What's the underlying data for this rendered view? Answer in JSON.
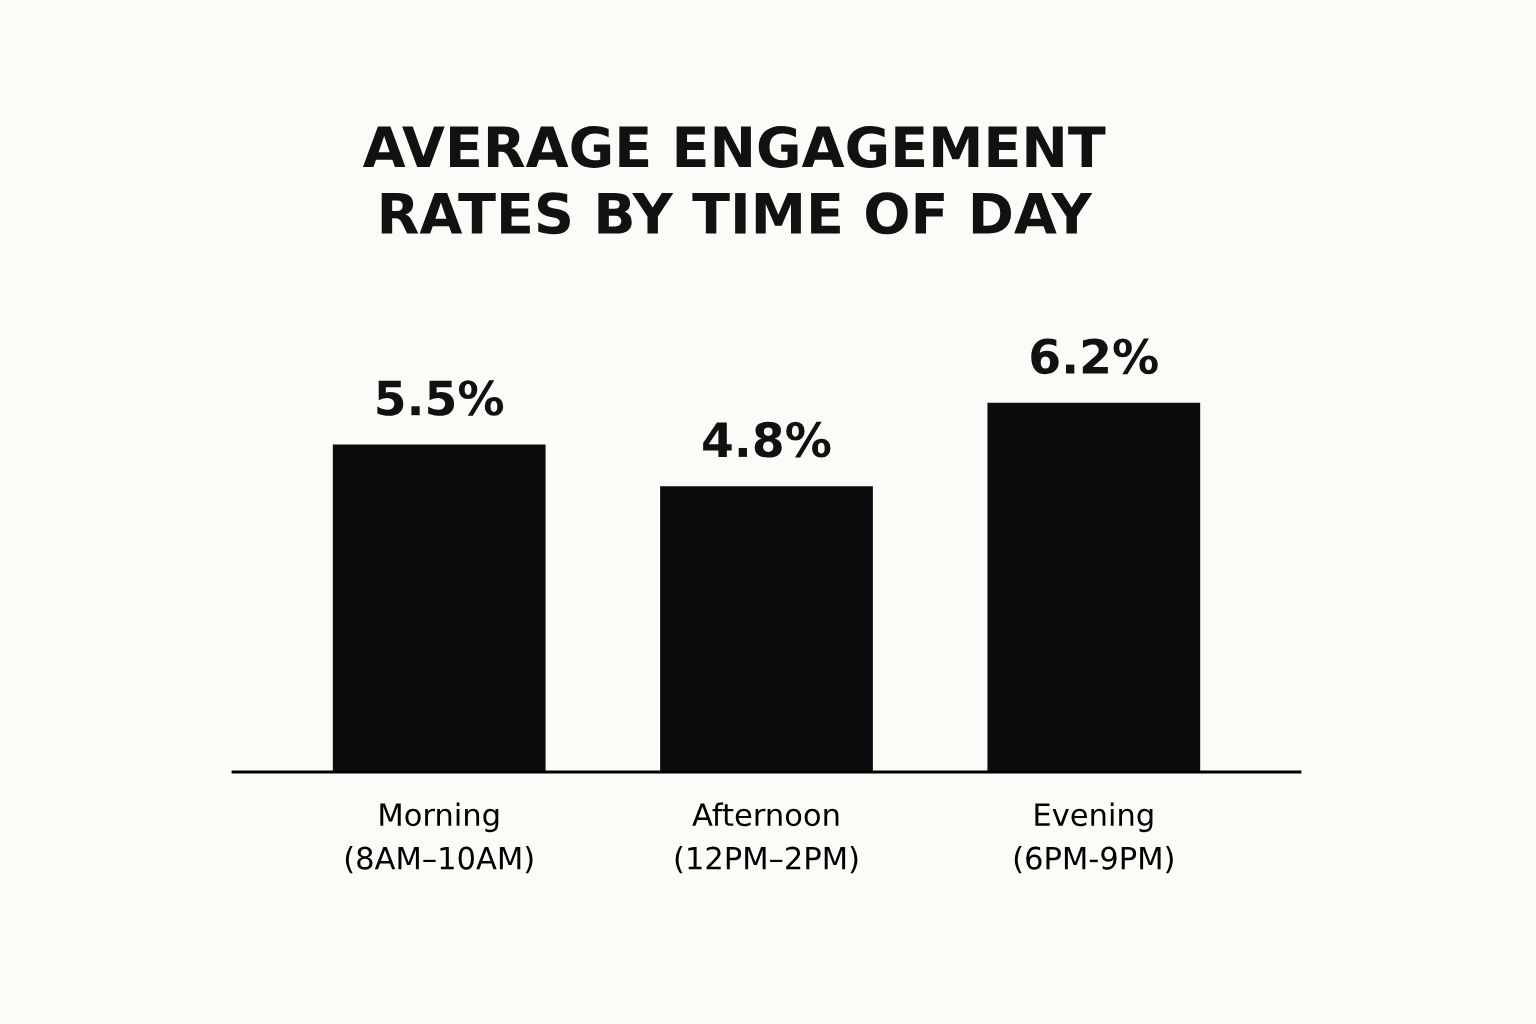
{
  "chart_data": {
    "type": "bar",
    "title": "AVERAGE ENGAGEMENT\nRATES BY TIME OF DAY",
    "categories": [
      "Morning\n(8AM–10AM)",
      "Afternoon\n(12PM–2PM)",
      "Evening\n(6PM-9PM)"
    ],
    "values": [
      5.5,
      4.8,
      6.2
    ],
    "value_labels": [
      "5.5%",
      "4.8%",
      "6.2%"
    ],
    "color": "#0a0c0e",
    "grid": false,
    "legend": false
  }
}
